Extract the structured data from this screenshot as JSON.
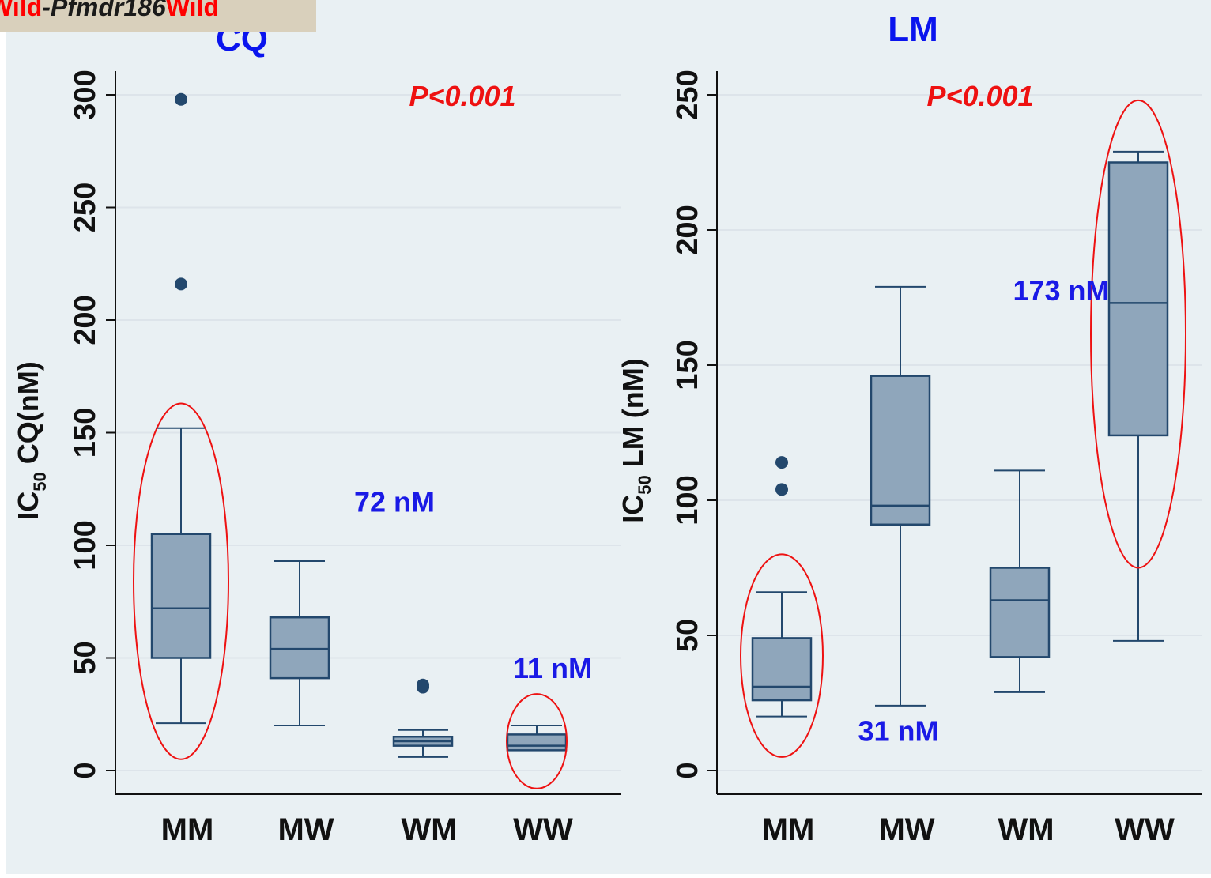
{
  "legend_tag": {
    "parts": [
      {
        "text": "Wild",
        "color": "#ff0000",
        "italic": false
      },
      {
        "text": "-Pfmdr186",
        "color": "#1a1a1a",
        "italic": true
      },
      {
        "text": "Wild",
        "color": "#ff0000",
        "italic": false
      }
    ]
  },
  "colors": {
    "background": "#e9f0f3",
    "box_fill": "#8fa6bb",
    "box_stroke": "#23486d",
    "title": "#0a14ee",
    "pvalue": "#ee1111",
    "annotation": "#1a1ae6",
    "ellipse": "#ee1111",
    "gridline": "#dde4ea"
  },
  "chart_data": [
    {
      "type": "box",
      "title": "CQ",
      "ylabel_prefix": "IC",
      "ylabel_sub": "50",
      "ylabel_rest": " CQ(nM)",
      "pvalue": "P<0.001",
      "categories": [
        "MM",
        "MW",
        "WM",
        "WW"
      ],
      "yticks": [
        0,
        50,
        100,
        150,
        200,
        250,
        300
      ],
      "ytick_labels": [
        "0",
        "50",
        "100",
        "150",
        "200",
        "250",
        "300"
      ],
      "ylim": [
        -10,
        310
      ],
      "grid": true,
      "boxes": [
        {
          "category": "MM",
          "whisker_low": 21,
          "q1": 50,
          "median": 72,
          "q3": 105,
          "whisker_high": 152,
          "outliers": [
            216,
            298
          ]
        },
        {
          "category": "MW",
          "whisker_low": 20,
          "q1": 41,
          "median": 54,
          "q3": 68,
          "whisker_high": 93,
          "outliers": []
        },
        {
          "category": "WM",
          "whisker_low": 6,
          "q1": 11,
          "median": 13,
          "q3": 15,
          "whisker_high": 18,
          "outliers": [
            37,
            38
          ]
        },
        {
          "category": "WW",
          "whisker_low": 9,
          "q1": 9,
          "median": 11,
          "q3": 16,
          "whisker_high": 20,
          "outliers": []
        }
      ],
      "annotations": [
        {
          "text": "72 nM",
          "category_index": 0.9,
          "y": 115
        },
        {
          "text": "11 nM",
          "category_index": 3,
          "y": 41
        }
      ],
      "highlight_ellipses": [
        {
          "category_index": 0,
          "y_low": 5,
          "y_high": 163
        },
        {
          "category_index": 3,
          "y_low": -8,
          "y_high": 34
        }
      ]
    },
    {
      "type": "box",
      "title": "LM",
      "ylabel_prefix": "IC",
      "ylabel_sub": "50",
      "ylabel_rest": " LM (nM)",
      "pvalue": "P<0.001",
      "categories": [
        "MM",
        "MW",
        "WM",
        "WW"
      ],
      "yticks": [
        0,
        50,
        100,
        150,
        200,
        250
      ],
      "ytick_labels": [
        "0",
        "50",
        "100",
        "150",
        "200",
        "250"
      ],
      "ylim": [
        -8,
        258
      ],
      "grid": true,
      "boxes": [
        {
          "category": "MM",
          "whisker_low": 20,
          "q1": 26,
          "median": 31,
          "q3": 49,
          "whisker_high": 66,
          "outliers": [
            104,
            114
          ]
        },
        {
          "category": "MW",
          "whisker_low": 24,
          "q1": 91,
          "median": 98,
          "q3": 146,
          "whisker_high": 179,
          "outliers": []
        },
        {
          "category": "WM",
          "whisker_low": 29,
          "q1": 42,
          "median": 63,
          "q3": 75,
          "whisker_high": 111,
          "outliers": []
        },
        {
          "category": "WW",
          "whisker_low": 48,
          "q1": 124,
          "median": 173,
          "q3": 225,
          "whisker_high": 229,
          "outliers": []
        }
      ],
      "annotations": [
        {
          "text": "31 nM",
          "category_index": 0.45,
          "y": 11
        },
        {
          "text": "173 nM",
          "category_index": 2.15,
          "y": 174
        }
      ],
      "highlight_ellipses": [
        {
          "category_index": 0,
          "y_low": 5,
          "y_high": 80
        },
        {
          "category_index": 3,
          "y_low": 75,
          "y_high": 248
        }
      ]
    }
  ]
}
